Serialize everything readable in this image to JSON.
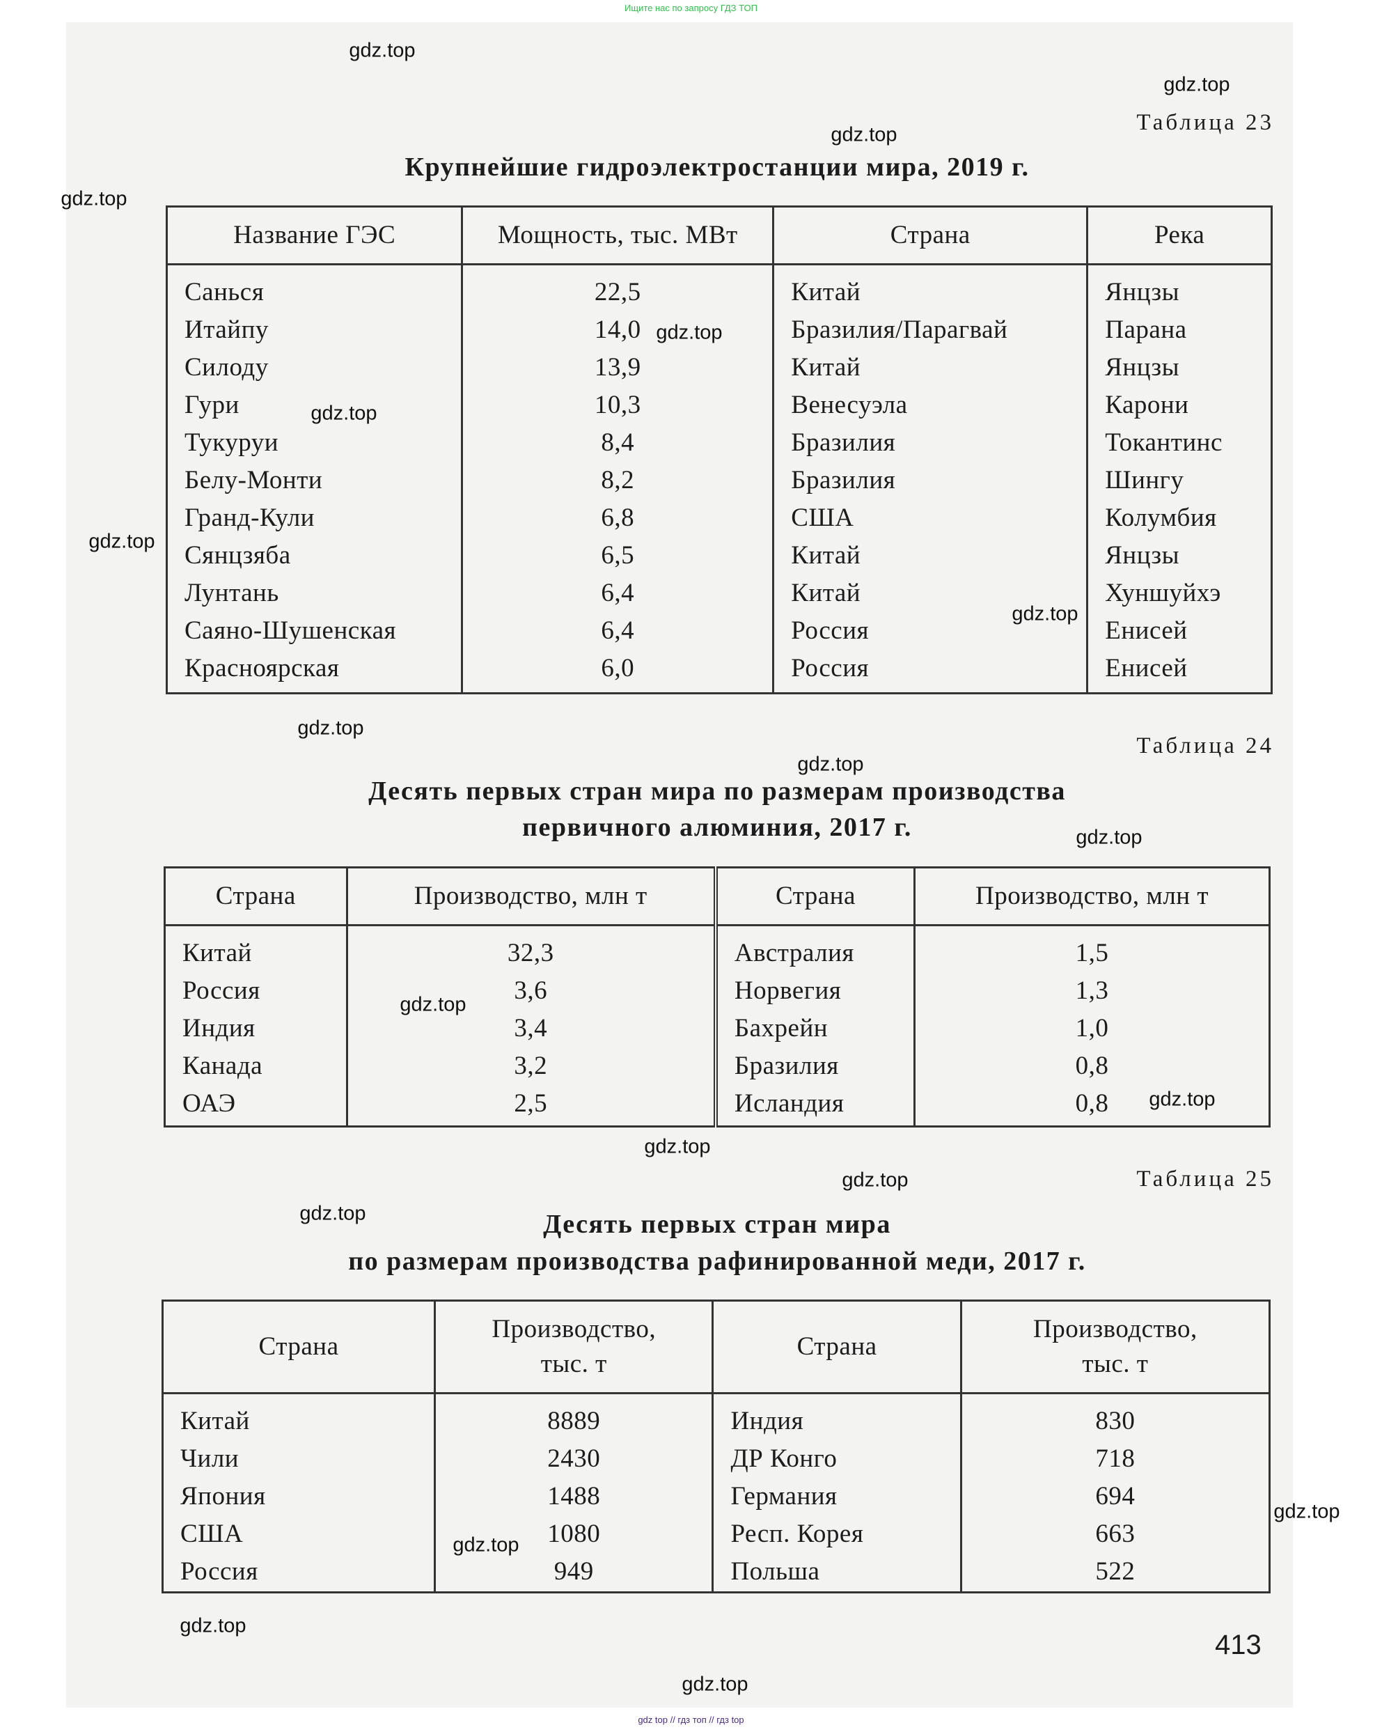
{
  "header_note": "Ищите нас по запросу ГДЗ ТОП",
  "footer_note": "gdz top // гдз топ // гдз top",
  "watermark": "gdz.top",
  "page_number": "413",
  "table23": {
    "label": "Таблица 23",
    "title": "Крупнейшие гидроэлектростанции мира, 2019 г.",
    "headers": [
      "Название ГЭС",
      "Мощность, тыс. МВт",
      "Страна",
      "Река"
    ],
    "rows": [
      [
        "Санься",
        "22,5",
        "Китай",
        "Янцзы"
      ],
      [
        "Итайпу",
        "14,0",
        "Бразилия/Парагвай",
        "Парана"
      ],
      [
        "Силоду",
        "13,9",
        "Китай",
        "Янцзы"
      ],
      [
        "Гури",
        "10,3",
        "Венесуэла",
        "Карони"
      ],
      [
        "Тукуруи",
        "8,4",
        "Бразилия",
        "Токантинс"
      ],
      [
        "Белу-Монти",
        "8,2",
        "Бразилия",
        "Шингу"
      ],
      [
        "Гранд-Кули",
        "6,8",
        "США",
        "Колумбия"
      ],
      [
        "Сянцзяба",
        "6,5",
        "Китай",
        "Янцзы"
      ],
      [
        "Лунтань",
        "6,4",
        "Китай",
        "Хуншуйхэ"
      ],
      [
        "Саяно-Шушенская",
        "6,4",
        "Россия",
        "Енисей"
      ],
      [
        "Красноярская",
        "6,0",
        "Россия",
        "Енисей"
      ]
    ]
  },
  "table24": {
    "label": "Таблица 24",
    "title_line1": "Десять первых стран мира по размерам производства",
    "title_line2": "первичного алюминия, 2017 г.",
    "headers": [
      "Страна",
      "Производство, млн т",
      "Страна",
      "Производство, млн т"
    ],
    "rows": [
      [
        "Китай",
        "32,3",
        "Австралия",
        "1,5"
      ],
      [
        "Россия",
        "3,6",
        "Норвегия",
        "1,3"
      ],
      [
        "Индия",
        "3,4",
        "Бахрейн",
        "1,0"
      ],
      [
        "Канада",
        "3,2",
        "Бразилия",
        "0,8"
      ],
      [
        "ОАЭ",
        "2,5",
        "Исландия",
        "0,8"
      ]
    ]
  },
  "table25": {
    "label": "Таблица 25",
    "title_line1": "Десять первых стран мира",
    "title_line2": "по размерам производства рафинированной меди, 2017 г.",
    "headers": [
      "Страна",
      "Производство,\nтыс. т",
      "Страна",
      "Производство,\nтыс. т"
    ],
    "rows": [
      [
        "Китай",
        "8889",
        "Индия",
        "830"
      ],
      [
        "Чили",
        "2430",
        "ДР Конго",
        "718"
      ],
      [
        "Япония",
        "1488",
        "Германия",
        "694"
      ],
      [
        "США",
        "1080",
        "Респ. Корея",
        "663"
      ],
      [
        "Россия",
        "949",
        "Польша",
        "522"
      ]
    ]
  }
}
